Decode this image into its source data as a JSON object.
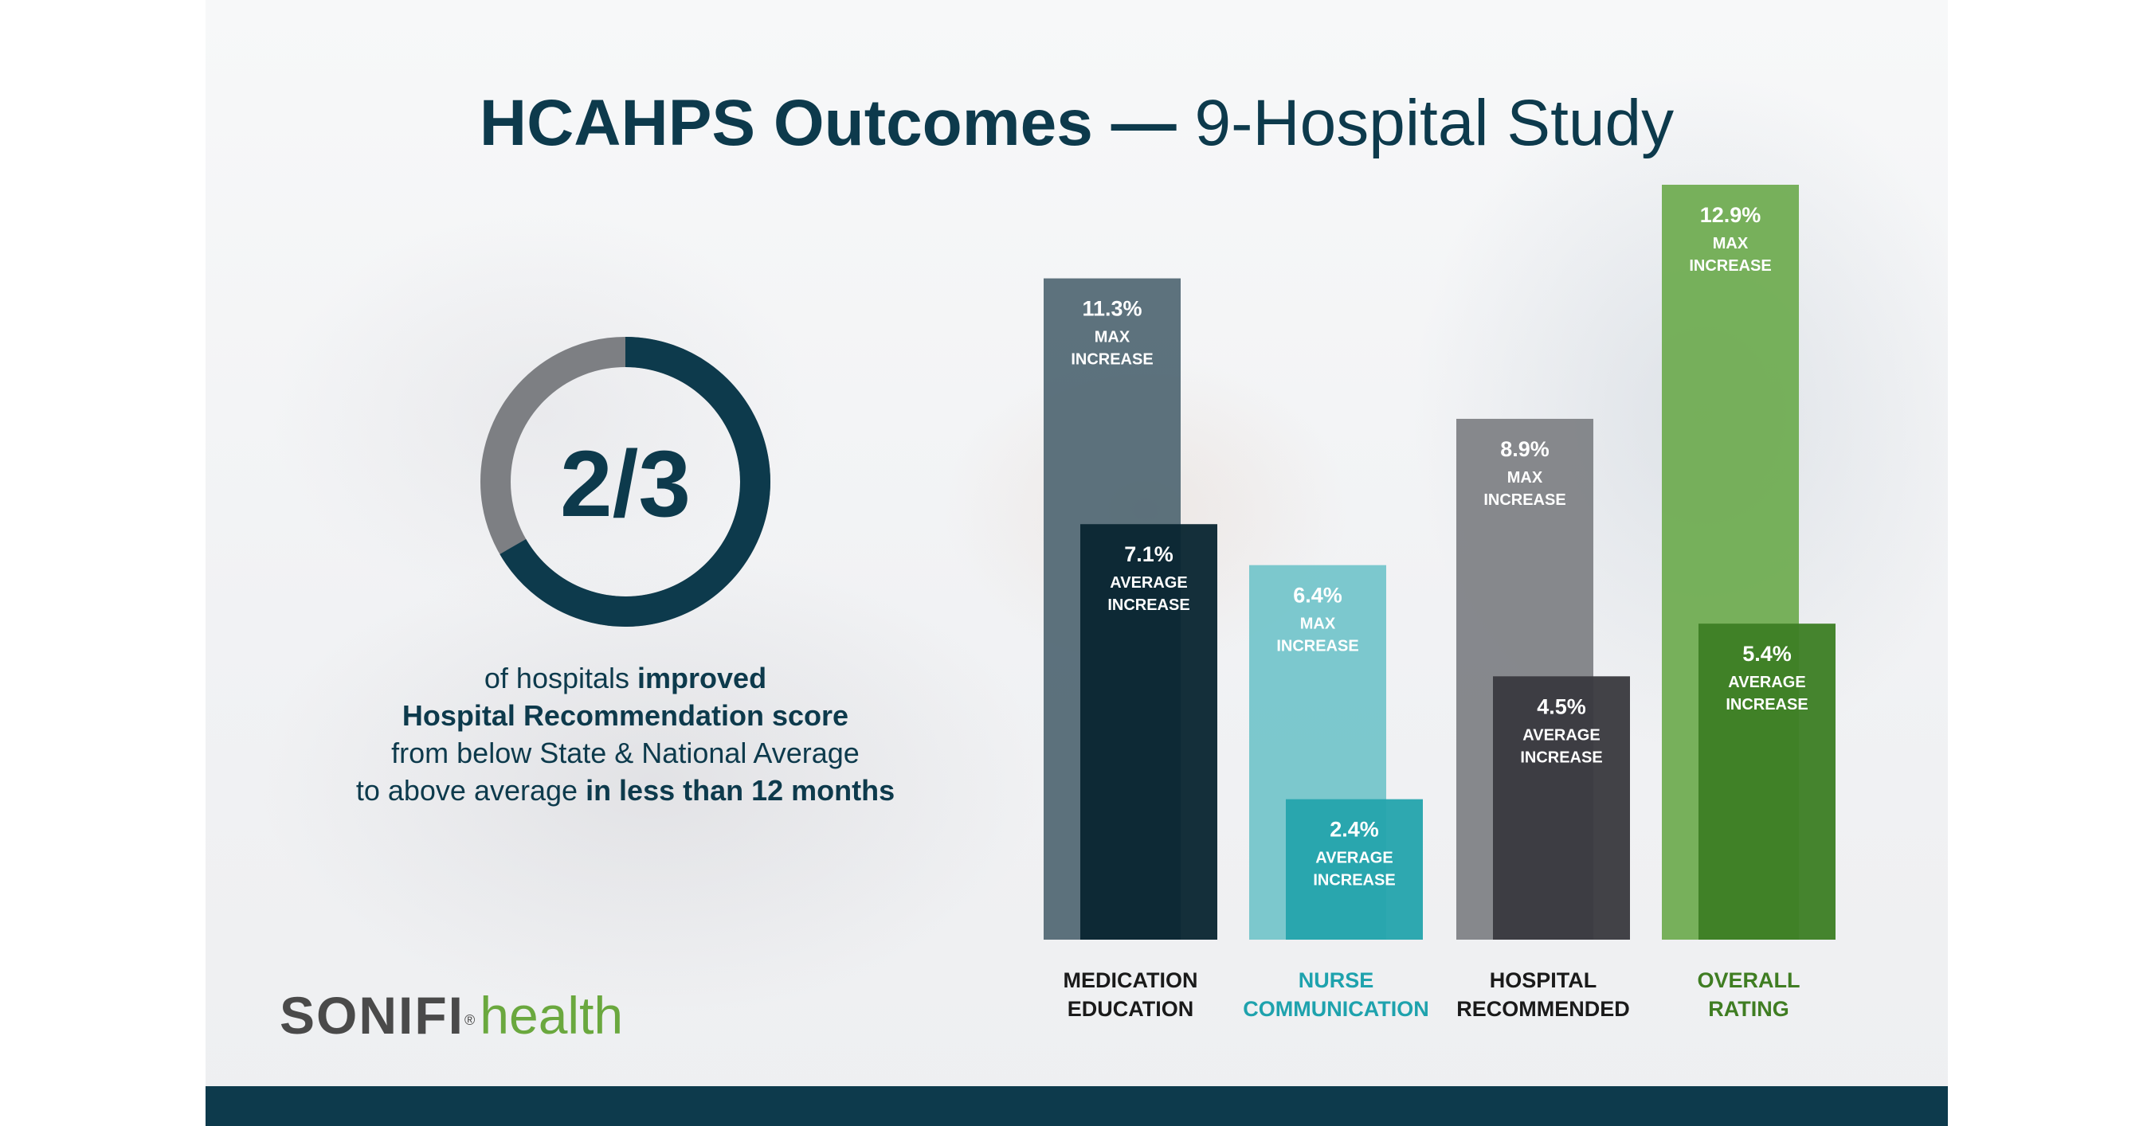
{
  "header": {
    "title_bold": "HCAHPS Outcomes —",
    "title_light": "9-Hospital Study"
  },
  "stat": {
    "fraction_text": "2/3",
    "fraction_value": 0.6667,
    "line1_a": "of hospitals ",
    "line1_b": "improved",
    "line2": "Hospital Recommendation score",
    "line3": "from below State & National Average",
    "line4_a": "to above average ",
    "line4_b": "in less than 12 months"
  },
  "logo": {
    "brand": "SONIFI",
    "reg": "®",
    "suffix": "health"
  },
  "colors": {
    "navy": "#0d3a4c",
    "gray_ring": "#7d7f83",
    "teal_label": "#1ea2ad",
    "green_label": "#3f7d22"
  },
  "chart_data": {
    "type": "bar",
    "categories": [
      {
        "line1": "MEDICATION",
        "line2": "EDUCATION",
        "label_color": "#1a1a1a"
      },
      {
        "line1": "NURSE",
        "line2": "COMMUNICATION",
        "label_color": "#1ea2ad"
      },
      {
        "line1": "HOSPITAL",
        "line2": "RECOMMENDED",
        "label_color": "#1a1a1a"
      },
      {
        "line1": "OVERALL",
        "line2": "RATING",
        "label_color": "#3f7d22"
      }
    ],
    "series": [
      {
        "kind": "max",
        "values": [
          11.3,
          6.4,
          8.9,
          12.9
        ],
        "value_labels": [
          "11.3%",
          "6.4%",
          "8.9%",
          "12.9%"
        ],
        "caption_line1": "MAX",
        "caption_line2": "INCREASE",
        "colors": [
          "#4f6672",
          "#72c4ca",
          "#7d7f83",
          "#6caa4e"
        ]
      },
      {
        "kind": "average",
        "values": [
          7.1,
          2.4,
          4.5,
          5.4
        ],
        "value_labels": [
          "7.1%",
          "2.4%",
          "4.5%",
          "5.4%"
        ],
        "caption_line1": "AVERAGE",
        "caption_line2": "INCREASE",
        "colors": [
          "#0a2632",
          "#25a4ad",
          "#3a3a3f",
          "#3d7f25"
        ]
      }
    ],
    "ylim": [
      0,
      12.9
    ],
    "grid": false,
    "legend": "none"
  }
}
